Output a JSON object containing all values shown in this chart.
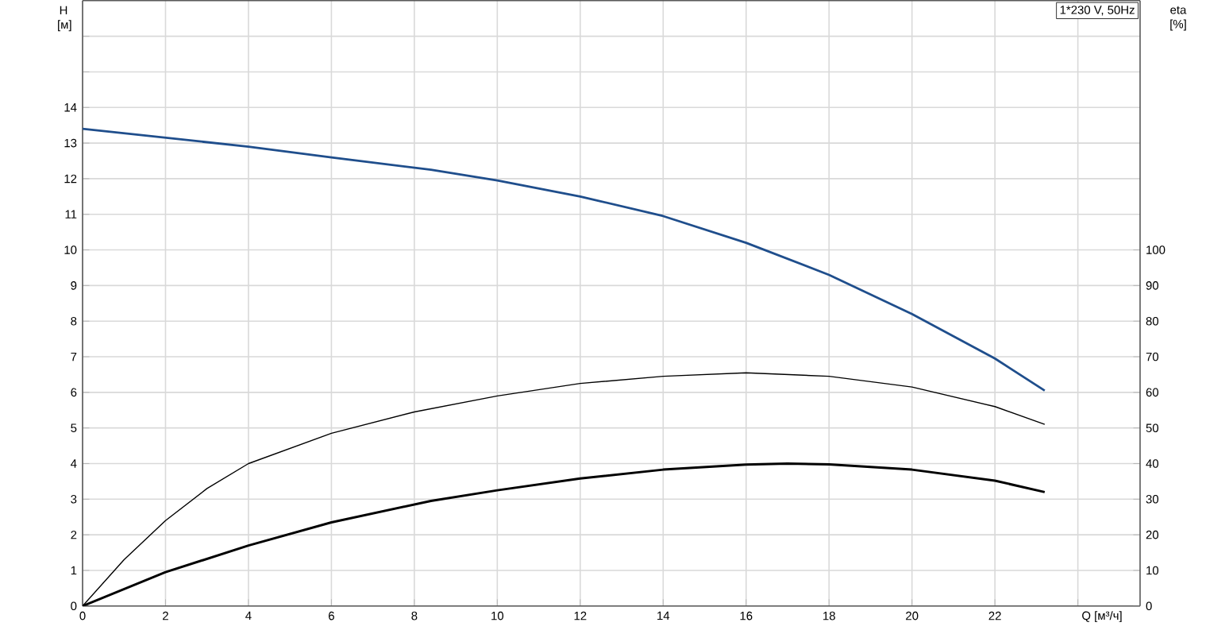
{
  "chart_data": {
    "type": "line",
    "xlabel": "Q [м³/ч]",
    "ylabel": "H [м]",
    "y2label": "eta [%]",
    "annotations": [
      "1*230 V, 50Hz"
    ],
    "grid": true,
    "marker": "none",
    "line_style": "solid",
    "xlim": [
      0,
      25.5
    ],
    "xticks": [
      0,
      2,
      4,
      6,
      8,
      10,
      12,
      14,
      16,
      18,
      20,
      22,
      {
        "value": 24,
        "label": null
      }
    ],
    "ylim": [
      0,
      17
    ],
    "yticks": [
      0,
      1,
      2,
      3,
      4,
      5,
      6,
      7,
      8,
      9,
      10,
      11,
      12,
      13,
      14,
      {
        "value": 15,
        "label": null
      },
      {
        "value": 16,
        "label": null
      }
    ],
    "y2lim": [
      0,
      170
    ],
    "y2ticks": [
      0,
      10,
      20,
      30,
      40,
      50,
      60,
      70,
      80,
      90,
      100
    ],
    "series": [
      {
        "color": "#1f4e8c",
        "x": [
          0,
          2,
          4,
          6,
          8.4,
          10,
          12,
          14,
          16,
          18,
          20,
          22,
          23.2
        ],
        "values": [
          13.4,
          13.15,
          12.9,
          12.6,
          12.25,
          11.95,
          11.5,
          10.95,
          10.2,
          9.3,
          8.2,
          6.95,
          6.05
        ]
      },
      {
        "color": "#000000",
        "axis": "y2",
        "x": [
          0,
          1,
          2,
          3,
          4,
          6,
          8,
          10,
          12,
          14,
          16,
          18,
          20,
          22,
          23.2
        ],
        "values": [
          0,
          13,
          24,
          33,
          40,
          48.5,
          54.5,
          59,
          62.5,
          64.5,
          65.5,
          64.5,
          61.5,
          56,
          51
        ]
      },
      {
        "color": "#000000",
        "axis": "y2",
        "x": [
          0,
          2,
          4,
          6,
          8.4,
          10,
          12,
          14,
          16,
          17,
          18,
          20,
          22,
          23.2
        ],
        "values": [
          0,
          9.5,
          17,
          23.5,
          29.5,
          32.5,
          35.8,
          38.3,
          39.7,
          40,
          39.8,
          38.3,
          35.2,
          32
        ]
      }
    ]
  }
}
